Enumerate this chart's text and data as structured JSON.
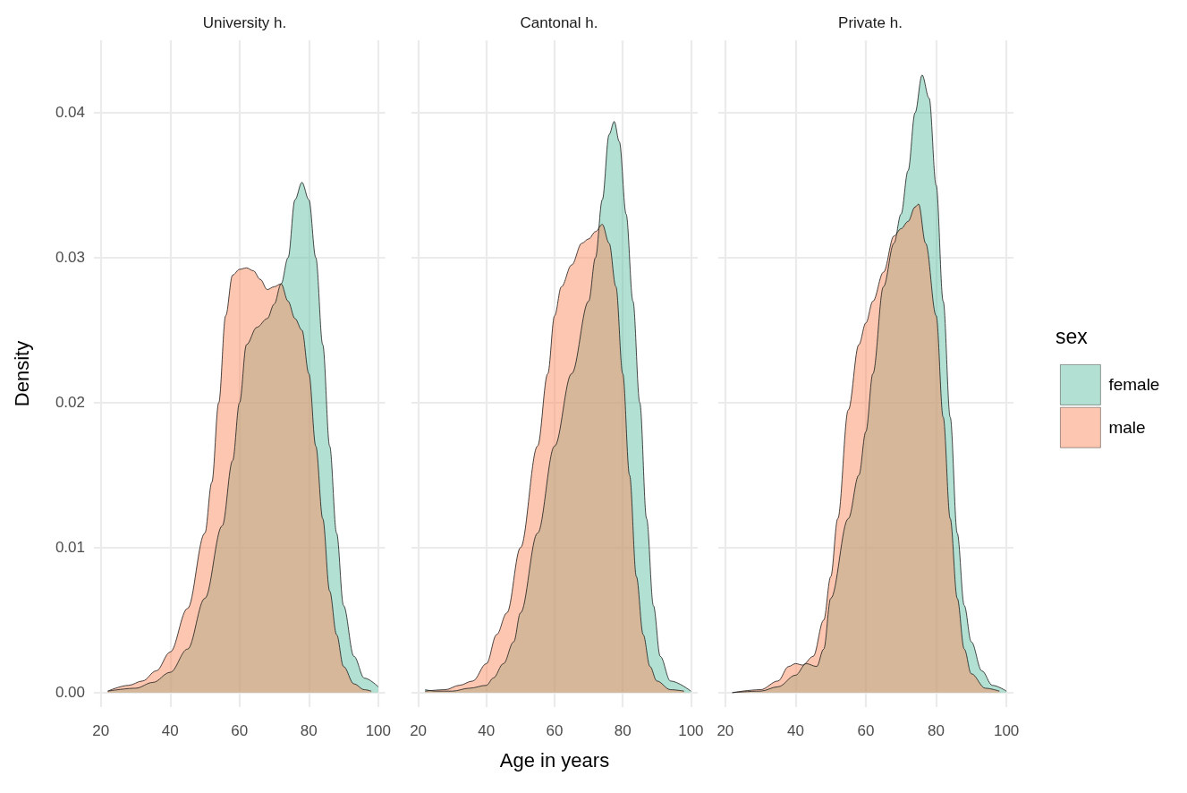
{
  "chart_data": [
    {
      "type": "area",
      "title": "University h.",
      "ylabel": "Density",
      "xlim": [
        18,
        102
      ],
      "xticks": [
        20,
        40,
        60,
        80,
        100
      ],
      "ylim": [
        -0.001,
        0.045
      ],
      "yticks": [
        {
          "value": 0,
          "label": "0.00"
        },
        {
          "value": 0.01,
          "label": "0.01"
        },
        {
          "value": 0.02,
          "label": "0.02"
        },
        {
          "value": 0.03,
          "label": "0.03"
        },
        {
          "value": 0.04,
          "label": "0.04"
        }
      ],
      "grid": true,
      "legend": false,
      "marker": "none",
      "series": [
        {
          "color": "#66c2a5",
          "x": [
            22,
            30,
            35,
            40,
            45,
            50,
            55,
            58,
            60,
            62,
            65,
            68,
            70,
            72,
            74,
            76,
            78,
            80,
            82,
            84,
            86,
            88,
            90,
            93,
            96,
            100
          ],
          "values": [
            0.0001,
            0.0003,
            0.0007,
            0.0014,
            0.003,
            0.0065,
            0.0115,
            0.016,
            0.02,
            0.024,
            0.0252,
            0.0258,
            0.0268,
            0.0282,
            0.03,
            0.034,
            0.0352,
            0.034,
            0.03,
            0.024,
            0.017,
            0.011,
            0.006,
            0.0025,
            0.001,
            0.0004
          ]
        },
        {
          "color": "#fc8d62",
          "x": [
            22,
            28,
            32,
            36,
            40,
            45,
            50,
            52,
            54,
            56,
            58,
            60,
            62,
            64,
            66,
            68,
            70,
            72,
            74,
            76,
            78,
            80,
            82,
            84,
            86,
            88,
            90,
            93,
            96,
            98
          ],
          "values": [
            0.0001,
            0.0005,
            0.0008,
            0.0015,
            0.0028,
            0.0058,
            0.011,
            0.0145,
            0.02,
            0.026,
            0.0288,
            0.0292,
            0.0293,
            0.0291,
            0.0285,
            0.0278,
            0.028,
            0.0282,
            0.027,
            0.0258,
            0.025,
            0.022,
            0.017,
            0.012,
            0.007,
            0.004,
            0.0018,
            0.0006,
            0.0002,
            0.0001
          ]
        }
      ]
    },
    {
      "type": "area",
      "title": "Cantonal h.",
      "xlabel": "Age in years",
      "xlim": [
        18,
        102
      ],
      "xticks": [
        20,
        40,
        60,
        80,
        100
      ],
      "ylim": [
        -0.001,
        0.045
      ],
      "yticks": [
        0,
        0.01,
        0.02,
        0.03,
        0.04
      ],
      "tick_labels": "x",
      "grid": true,
      "legend": false,
      "marker": "none",
      "series": [
        {
          "color": "#66c2a5",
          "x": [
            22,
            25,
            30,
            35,
            40,
            42,
            45,
            48,
            50,
            55,
            60,
            65,
            70,
            72,
            74,
            76,
            77.5,
            79,
            81,
            83,
            85,
            87,
            89,
            91,
            94,
            100
          ],
          "values": [
            0.0002,
            0.0001,
            0.0001,
            0.0003,
            0.0005,
            0.001,
            0.002,
            0.0035,
            0.0055,
            0.011,
            0.017,
            0.022,
            0.027,
            0.03,
            0.034,
            0.0385,
            0.0394,
            0.038,
            0.033,
            0.027,
            0.02,
            0.012,
            0.006,
            0.0025,
            0.0008,
            0.0001
          ]
        },
        {
          "color": "#fc8d62",
          "x": [
            22,
            28,
            32,
            36,
            40,
            43,
            46,
            50,
            55,
            58,
            60,
            62,
            65,
            68,
            70,
            72,
            74,
            76,
            78,
            80,
            82,
            84,
            86,
            88,
            90,
            94,
            98
          ],
          "values": [
            0.0001,
            0.0002,
            0.0005,
            0.0008,
            0.002,
            0.004,
            0.0055,
            0.01,
            0.017,
            0.022,
            0.026,
            0.028,
            0.0295,
            0.031,
            0.0313,
            0.0318,
            0.0323,
            0.031,
            0.028,
            0.022,
            0.015,
            0.008,
            0.004,
            0.0018,
            0.0008,
            0.0002,
            0.0001
          ]
        }
      ]
    },
    {
      "type": "area",
      "title": "Private h.",
      "legend_title": "sex",
      "xlim": [
        18,
        102
      ],
      "xticks": [
        20,
        40,
        60,
        80,
        100
      ],
      "ylim": [
        -0.001,
        0.045
      ],
      "yticks": [
        0,
        0.01,
        0.02,
        0.03,
        0.04
      ],
      "tick_labels": "x",
      "grid": true,
      "legend": "right",
      "marker": "none",
      "series": [
        {
          "name": "female",
          "color": "#66c2a5",
          "x": [
            22,
            30,
            35,
            40,
            43,
            46,
            48,
            50,
            55,
            58,
            60,
            62,
            65,
            68,
            70,
            72,
            74,
            76,
            78,
            80,
            82,
            84,
            86,
            88,
            90,
            93,
            96,
            100
          ],
          "values": [
            0,
            0.0001,
            0.0004,
            0.0012,
            0.002,
            0.0018,
            0.003,
            0.0065,
            0.012,
            0.015,
            0.018,
            0.022,
            0.028,
            0.031,
            0.033,
            0.036,
            0.04,
            0.0426,
            0.041,
            0.035,
            0.027,
            0.019,
            0.011,
            0.006,
            0.0035,
            0.0015,
            0.0005,
            0.0001
          ]
        },
        {
          "name": "male",
          "color": "#fc8d62",
          "x": [
            22,
            30,
            35,
            38,
            40,
            42,
            45,
            48,
            50,
            52,
            55,
            58,
            60,
            62,
            65,
            68,
            70,
            72,
            74,
            75,
            77,
            80,
            82,
            84,
            86,
            88,
            90,
            94,
            98
          ],
          "values": [
            0,
            0.0002,
            0.0008,
            0.0018,
            0.002,
            0.0019,
            0.0025,
            0.005,
            0.008,
            0.012,
            0.0195,
            0.024,
            0.0255,
            0.027,
            0.029,
            0.0315,
            0.032,
            0.0325,
            0.0335,
            0.0337,
            0.031,
            0.026,
            0.019,
            0.012,
            0.0065,
            0.003,
            0.0013,
            0.0003,
            0.0001
          ]
        }
      ]
    }
  ]
}
